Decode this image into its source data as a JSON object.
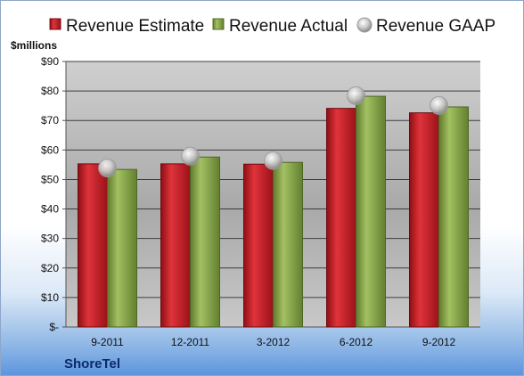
{
  "chart_data": {
    "type": "bar",
    "company": "ShoreTel",
    "ylabel": "$millions",
    "categories": [
      "9-2011",
      "12-2011",
      "3-2012",
      "6-2012",
      "9-2012"
    ],
    "yticks": [
      "$-",
      "$10",
      "$20",
      "$30",
      "$40",
      "$50",
      "$60",
      "$70",
      "$80",
      "$90"
    ],
    "ylim": [
      0,
      90
    ],
    "grid": true,
    "legend": "top",
    "series": [
      {
        "name": "Revenue Estimate",
        "kind": "bar",
        "color": "#c8202a",
        "values": [
          55.3,
          55.3,
          55.2,
          74.1,
          72.6
        ]
      },
      {
        "name": "Revenue Actual",
        "kind": "bar",
        "color": "#8aa84e",
        "values": [
          53.4,
          57.6,
          55.8,
          78.2,
          74.6
        ]
      },
      {
        "name": "Revenue GAAP",
        "kind": "marker",
        "color": "#b9b9b9",
        "values": [
          53.9,
          57.9,
          56.4,
          78.4,
          75.1
        ]
      }
    ]
  }
}
